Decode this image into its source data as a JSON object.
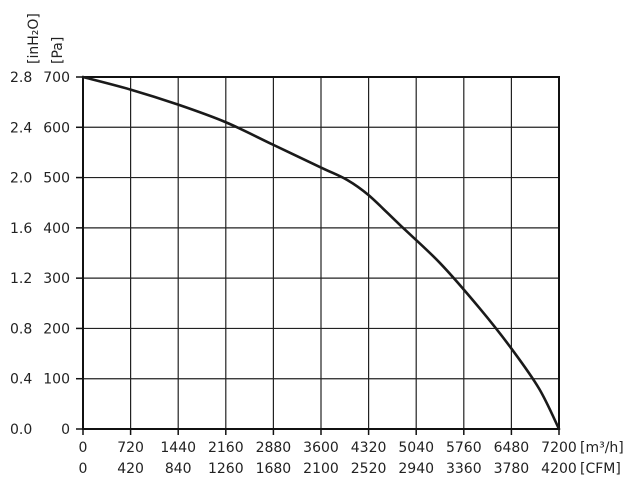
{
  "chart_data": {
    "type": "line",
    "grid": true,
    "x_primary": {
      "unit_label": "[m³/h]",
      "ticks": [
        0,
        720,
        1440,
        2160,
        2880,
        3600,
        4320,
        5040,
        5760,
        6480,
        7200
      ],
      "range": [
        0,
        7200
      ]
    },
    "x_secondary": {
      "unit_label": "[CFM]",
      "ticks": [
        0,
        420,
        840,
        1260,
        1680,
        2100,
        2520,
        2940,
        3360,
        3780,
        4200
      ]
    },
    "y_primary": {
      "unit_label": "[Pa]",
      "ticks": [
        0,
        100,
        200,
        300,
        400,
        500,
        600,
        700
      ],
      "range": [
        0,
        700
      ]
    },
    "y_secondary": {
      "unit_label": "[inH₂O]",
      "ticks": [
        "0.0",
        "0.4",
        "0.8",
        "1.2",
        "1.6",
        "2.0",
        "2.4",
        "2.8"
      ]
    },
    "series": [
      {
        "color": "#1a1a1a",
        "x": [
          0,
          720,
          1440,
          2160,
          2880,
          3600,
          4000,
          4320,
          4800,
          5400,
          6000,
          6480,
          6900,
          7200
        ],
        "y": [
          700,
          675,
          645,
          610,
          565,
          520,
          495,
          465,
          405,
          330,
          240,
          160,
          80,
          0
        ]
      }
    ]
  }
}
